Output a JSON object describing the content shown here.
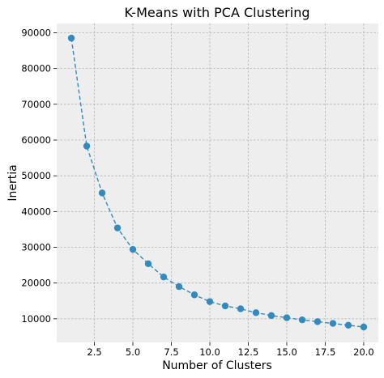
{
  "chart_data": {
    "type": "line",
    "title": "K-Means with PCA Clustering",
    "xlabel": "Number of Clusters",
    "ylabel": "Inertia",
    "x": [
      1,
      2,
      3,
      4,
      5,
      6,
      7,
      8,
      9,
      10,
      11,
      12,
      13,
      14,
      15,
      16,
      17,
      18,
      19,
      20
    ],
    "series": [
      {
        "values": [
          88500,
          58300,
          45200,
          35400,
          29400,
          25400,
          21700,
          19000,
          16700,
          14800,
          13600,
          12800,
          11700,
          10900,
          10300,
          9700,
          9200,
          8700,
          8200,
          7700
        ],
        "color": "#348abd",
        "line_style": "dashed",
        "marker": "circle"
      }
    ],
    "xlim": [
      0.05,
      20.95
    ],
    "ylim": [
      3400,
      92600
    ],
    "xticks": [
      2.5,
      5.0,
      7.5,
      10.0,
      12.5,
      15.0,
      17.5,
      20.0
    ],
    "xtick_labels": [
      "2.5",
      "5.0",
      "7.5",
      "10.0",
      "12.5",
      "15.0",
      "17.5",
      "20.0"
    ],
    "yticks": [
      10000,
      20000,
      30000,
      40000,
      50000,
      60000,
      70000,
      80000,
      90000
    ],
    "ytick_labels": [
      "10000",
      "20000",
      "30000",
      "40000",
      "50000",
      "60000",
      "70000",
      "80000",
      "90000"
    ],
    "grid": true,
    "style": "bmh",
    "background": "#eeeeee"
  }
}
